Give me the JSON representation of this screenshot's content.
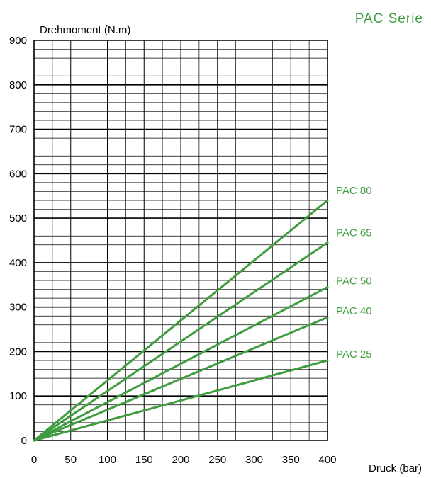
{
  "series_title": "PAC Serie",
  "colors": {
    "line": "#3f9d3f",
    "label": "#3f9d3f",
    "grid": "#000000"
  },
  "chart_data": {
    "type": "line",
    "title": "PAC Serie",
    "ylabel": "Drehmoment (N.m)",
    "xlabel": "Druck (bar)",
    "xlim": [
      0,
      400
    ],
    "ylim": [
      0,
      900
    ],
    "x_ticks": [
      "0",
      "50",
      "100",
      "150",
      "200",
      "250",
      "300",
      "350",
      "400"
    ],
    "y_ticks": [
      "0",
      "100",
      "200",
      "300",
      "400",
      "500",
      "600",
      "700",
      "800",
      "900"
    ],
    "grid": true,
    "series": [
      {
        "name": "PAC 80",
        "x": [
          0,
          400
        ],
        "y": [
          0,
          540
        ]
      },
      {
        "name": "PAC 65",
        "x": [
          0,
          400
        ],
        "y": [
          0,
          445
        ]
      },
      {
        "name": "PAC 50",
        "x": [
          0,
          400
        ],
        "y": [
          0,
          345
        ]
      },
      {
        "name": "PAC 40",
        "x": [
          0,
          400
        ],
        "y": [
          0,
          277
        ]
      },
      {
        "name": "PAC 25",
        "x": [
          0,
          400
        ],
        "y": [
          0,
          180
        ]
      }
    ]
  }
}
